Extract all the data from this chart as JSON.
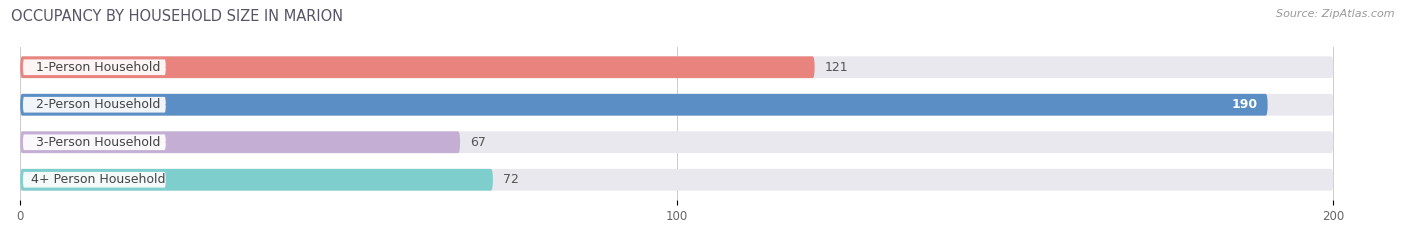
{
  "title": "OCCUPANCY BY HOUSEHOLD SIZE IN MARION",
  "source": "Source: ZipAtlas.com",
  "categories": [
    "1-Person Household",
    "2-Person Household",
    "3-Person Household",
    "4+ Person Household"
  ],
  "values": [
    121,
    190,
    67,
    72
  ],
  "bar_colors": [
    "#e8837e",
    "#5b8ec4",
    "#c4aed4",
    "#7ecece"
  ],
  "bar_bg_color": "#e8e8ee",
  "label_border_colors": [
    "#e8837e",
    "#5b8ec4",
    "#c4aed4",
    "#7ecece"
  ],
  "xlim": [
    0,
    200
  ],
  "xticks": [
    0,
    100,
    200
  ],
  "figsize": [
    14.06,
    2.33
  ],
  "dpi": 100,
  "title_fontsize": 10.5,
  "label_fontsize": 9,
  "value_fontsize": 9,
  "source_fontsize": 8,
  "bar_height": 0.58,
  "bg_bar_max": 200,
  "value_threshold": 150
}
